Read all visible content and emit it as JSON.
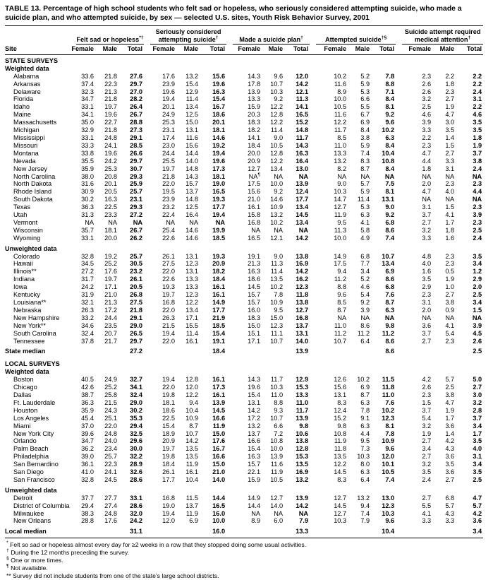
{
  "title": "TABLE 13. Percentage of high school students who felt sad or hopeless, who seriously considered attempting suicide, who made a suicide plan, and who attempted suicide, by sex — selected U.S. sites, Youth Risk Behavior Survey, 2001",
  "header": {
    "site_label": "Site",
    "sub_labels": [
      "Female",
      "Male",
      "Total"
    ],
    "groups": [
      {
        "label": "Felt sad or hopeless",
        "sup": "*†"
      },
      {
        "label": "Seriously considered\nattempting suicide",
        "sup": "†"
      },
      {
        "label": "Made a suicide plan",
        "sup": "†"
      },
      {
        "label": "Attempted suicide",
        "sup": "†§"
      },
      {
        "label": "Suicide attempt required\nmedical attention",
        "sup": "†"
      }
    ]
  },
  "rows": [
    {
      "t": "sec",
      "label": "STATE SURVEYS"
    },
    {
      "t": "sub",
      "label": "Weighted data"
    },
    {
      "t": "r",
      "site": "Alabama",
      "v": [
        "33.6",
        "21.8",
        "27.6",
        "17.6",
        "13.2",
        "15.6",
        "14.3",
        "9.6",
        "12.0",
        "10.2",
        "5.2",
        "7.8",
        "2.3",
        "2.2",
        "2.2"
      ]
    },
    {
      "t": "r",
      "site": "Arkansas",
      "v": [
        "37.4",
        "22.3",
        "29.7",
        "23.9",
        "15.4",
        "19.6",
        "17.8",
        "10.7",
        "14.2",
        "11.6",
        "5.9",
        "8.8",
        "2.6",
        "1.8",
        "2.2"
      ]
    },
    {
      "t": "r",
      "site": "Delaware",
      "v": [
        "32.3",
        "21.3",
        "27.0",
        "19.6",
        "12.9",
        "16.3",
        "13.9",
        "10.3",
        "12.1",
        "8.9",
        "5.3",
        "7.1",
        "2.6",
        "2.3",
        "2.4"
      ]
    },
    {
      "t": "r",
      "site": "Florida",
      "v": [
        "34.7",
        "21.8",
        "28.2",
        "19.4",
        "11.4",
        "15.4",
        "13.3",
        "9.2",
        "11.3",
        "10.0",
        "6.6",
        "8.4",
        "3.2",
        "2.7",
        "3.1"
      ]
    },
    {
      "t": "r",
      "site": "Idaho",
      "v": [
        "33.1",
        "19.7",
        "26.4",
        "20.1",
        "13.4",
        "16.7",
        "15.9",
        "12.2",
        "14.1",
        "10.5",
        "5.5",
        "8.1",
        "2.5",
        "1.9",
        "2.2"
      ]
    },
    {
      "t": "r",
      "site": "Maine",
      "v": [
        "34.1",
        "19.6",
        "26.7",
        "24.9",
        "12.5",
        "18.6",
        "20.3",
        "12.8",
        "16.5",
        "11.6",
        "6.7",
        "9.2",
        "4.6",
        "4.7",
        "4.6"
      ]
    },
    {
      "t": "r",
      "site": "Massachusetts",
      "v": [
        "35.0",
        "22.7",
        "28.8",
        "25.3",
        "15.0",
        "20.1",
        "18.3",
        "12.2",
        "15.2",
        "12.2",
        "6.9",
        "9.6",
        "3.9",
        "3.0",
        "3.5"
      ]
    },
    {
      "t": "r",
      "site": "Michigan",
      "v": [
        "32.9",
        "21.8",
        "27.3",
        "23.1",
        "13.1",
        "18.1",
        "18.2",
        "11.4",
        "14.8",
        "11.7",
        "8.4",
        "10.2",
        "3.3",
        "3.5",
        "3.5"
      ]
    },
    {
      "t": "r",
      "site": "Mississippi",
      "v": [
        "33.1",
        "24.8",
        "29.1",
        "17.4",
        "11.6",
        "14.6",
        "14.1",
        "9.0",
        "11.7",
        "8.5",
        "3.8",
        "6.3",
        "2.2",
        "1.4",
        "1.8"
      ]
    },
    {
      "t": "r",
      "site": "Missouri",
      "v": [
        "33.3",
        "24.1",
        "28.5",
        "23.0",
        "15.6",
        "19.2",
        "18.4",
        "10.5",
        "14.3",
        "11.0",
        "5.9",
        "8.4",
        "2.3",
        "1.5",
        "1.9"
      ]
    },
    {
      "t": "r",
      "site": "Montana",
      "v": [
        "33.8",
        "19.6",
        "26.6",
        "24.4",
        "14.4",
        "19.4",
        "20.0",
        "12.8",
        "16.3",
        "13.3",
        "7.4",
        "10.4",
        "4.7",
        "2.7",
        "3.7"
      ]
    },
    {
      "t": "r",
      "site": "Nevada",
      "v": [
        "35.5",
        "24.2",
        "29.7",
        "25.5",
        "14.0",
        "19.6",
        "20.9",
        "12.2",
        "16.4",
        "13.2",
        "8.3",
        "10.8",
        "4.4",
        "3.3",
        "3.8"
      ]
    },
    {
      "t": "r",
      "site": "New Jersey",
      "v": [
        "35.9",
        "25.3",
        "30.7",
        "19.7",
        "14.8",
        "17.3",
        "12.7",
        "13.4",
        "13.0",
        "8.2",
        "8.7",
        "8.4",
        "1.8",
        "3.1",
        "2.4"
      ]
    },
    {
      "t": "r",
      "site": "North Carolina",
      "v": [
        "38.0",
        "20.8",
        "29.3",
        "21.8",
        "14.3",
        "18.1",
        "NA¶",
        "NA",
        "NA",
        "NA",
        "NA",
        "NA",
        "NA",
        "NA",
        "NA"
      ]
    },
    {
      "t": "r",
      "site": "North Dakota",
      "v": [
        "31.6",
        "20.1",
        "25.9",
        "22.0",
        "15.7",
        "19.0",
        "17.5",
        "10.0",
        "13.9",
        "9.0",
        "5.7",
        "7.5",
        "2.0",
        "2.3",
        "2.3"
      ]
    },
    {
      "t": "r",
      "site": "Rhode Island",
      "v": [
        "30.9",
        "20.5",
        "25.7",
        "19.5",
        "13.7",
        "16.5",
        "15.6",
        "9.2",
        "12.4",
        "10.3",
        "5.9",
        "8.1",
        "4.7",
        "4.0",
        "4.4"
      ]
    },
    {
      "t": "r",
      "site": "South Dakota",
      "v": [
        "30.2",
        "16.3",
        "23.1",
        "23.9",
        "14.8",
        "19.3",
        "21.0",
        "14.6",
        "17.7",
        "14.7",
        "11.4",
        "13.1",
        "NA",
        "NA",
        "NA"
      ]
    },
    {
      "t": "r",
      "site": "Texas",
      "v": [
        "36.3",
        "22.5",
        "29.3",
        "23.2",
        "12.5",
        "17.7",
        "16.1",
        "10.9",
        "13.4",
        "12.7",
        "5.3",
        "9.0",
        "3.1",
        "1.5",
        "2.3"
      ]
    },
    {
      "t": "r",
      "site": "Utah",
      "v": [
        "31.3",
        "23.3",
        "27.2",
        "22.4",
        "16.4",
        "19.4",
        "15.8",
        "13.2",
        "14.5",
        "11.9",
        "6.3",
        "9.2",
        "3.7",
        "4.1",
        "3.9"
      ]
    },
    {
      "t": "r",
      "site": "Vermont",
      "v": [
        "NA",
        "NA",
        "NA",
        "NA",
        "NA",
        "NA",
        "16.8",
        "10.2",
        "13.4",
        "9.5",
        "4.1",
        "6.8",
        "2.7",
        "1.7",
        "2.3"
      ]
    },
    {
      "t": "r",
      "site": "Wisconsin",
      "v": [
        "35.7",
        "18.1",
        "26.7",
        "25.4",
        "14.6",
        "19.9",
        "NA",
        "NA",
        "NA",
        "11.3",
        "5.8",
        "8.6",
        "3.2",
        "1.8",
        "2.5"
      ]
    },
    {
      "t": "r",
      "site": "Wyoming",
      "v": [
        "33.1",
        "20.0",
        "26.2",
        "22.6",
        "14.6",
        "18.5",
        "16.5",
        "12.1",
        "14.2",
        "10.0",
        "4.9",
        "7.4",
        "3.3",
        "1.6",
        "2.4"
      ]
    },
    {
      "t": "sub",
      "label": "Unweighted data",
      "gap": true
    },
    {
      "t": "r",
      "site": "Colorado",
      "v": [
        "32.8",
        "19.2",
        "25.7",
        "26.1",
        "13.1",
        "19.3",
        "19.1",
        "9.0",
        "13.8",
        "14.9",
        "6.8",
        "10.7",
        "4.8",
        "2.3",
        "3.5"
      ]
    },
    {
      "t": "r",
      "site": "Hawaii",
      "v": [
        "34.5",
        "25.2",
        "30.5",
        "27.5",
        "12.3",
        "20.9",
        "21.3",
        "11.3",
        "16.9",
        "17.5",
        "7.7",
        "13.4",
        "4.0",
        "2.3",
        "3.4"
      ]
    },
    {
      "t": "r",
      "site": "Illinois**",
      "v": [
        "27.2",
        "17.6",
        "23.2",
        "22.0",
        "13.1",
        "18.2",
        "16.3",
        "11.4",
        "14.2",
        "9.4",
        "3.4",
        "6.9",
        "1.6",
        "0.5",
        "1.2"
      ]
    },
    {
      "t": "r",
      "site": "Indiana",
      "v": [
        "31.7",
        "19.7",
        "26.1",
        "22.6",
        "13.3",
        "18.4",
        "18.6",
        "13.5",
        "16.2",
        "11.2",
        "5.2",
        "8.6",
        "3.5",
        "1.9",
        "2.9"
      ]
    },
    {
      "t": "r",
      "site": "Iowa",
      "v": [
        "24.2",
        "17.1",
        "20.5",
        "19.3",
        "13.3",
        "16.1",
        "14.5",
        "10.2",
        "12.3",
        "8.8",
        "4.6",
        "6.8",
        "2.9",
        "1.0",
        "2.0"
      ]
    },
    {
      "t": "r",
      "site": "Kentucky",
      "v": [
        "31.9",
        "21.0",
        "26.8",
        "19.7",
        "12.3",
        "16.1",
        "15.7",
        "7.8",
        "11.8",
        "9.6",
        "5.4",
        "7.6",
        "2.3",
        "2.7",
        "2.5"
      ]
    },
    {
      "t": "r",
      "site": "Louisiana**",
      "v": [
        "32.1",
        "21.3",
        "27.5",
        "16.8",
        "12.2",
        "14.9",
        "15.7",
        "10.9",
        "13.8",
        "8.5",
        "9.2",
        "8.7",
        "3.1",
        "3.8",
        "3.4"
      ]
    },
    {
      "t": "r",
      "site": "Nebraska",
      "v": [
        "26.3",
        "17.2",
        "21.8",
        "22.0",
        "13.4",
        "17.7",
        "16.0",
        "9.5",
        "12.7",
        "8.7",
        "3.9",
        "6.3",
        "2.0",
        "0.9",
        "1.5"
      ]
    },
    {
      "t": "r",
      "site": "New Hampshire",
      "v": [
        "33.2",
        "24.4",
        "29.1",
        "26.3",
        "17.1",
        "21.9",
        "18.3",
        "15.0",
        "16.8",
        "NA",
        "NA",
        "NA",
        "NA",
        "NA",
        "NA"
      ]
    },
    {
      "t": "r",
      "site": "New York**",
      "v": [
        "34.6",
        "23.5",
        "29.0",
        "21.5",
        "15.5",
        "18.5",
        "15.0",
        "12.3",
        "13.7",
        "11.0",
        "8.6",
        "9.8",
        "3.6",
        "4.1",
        "3.9"
      ]
    },
    {
      "t": "r",
      "site": "South Carolina",
      "v": [
        "32.4",
        "20.7",
        "26.5",
        "19.4",
        "11.4",
        "15.4",
        "15.1",
        "11.1",
        "13.1",
        "11.2",
        "11.2",
        "11.2",
        "3.7",
        "5.4",
        "4.5"
      ]
    },
    {
      "t": "r",
      "site": "Tennessee",
      "v": [
        "37.8",
        "21.7",
        "29.7",
        "22.0",
        "16.1",
        "19.1",
        "17.1",
        "10.7",
        "14.0",
        "10.7",
        "6.4",
        "8.6",
        "2.7",
        "2.3",
        "2.6"
      ]
    },
    {
      "t": "med",
      "site": "State median",
      "v": [
        "27.2",
        "18.4",
        "13.9",
        "8.6",
        "2.5"
      ]
    },
    {
      "t": "sec",
      "label": "LOCAL SURVEYS",
      "gap": true
    },
    {
      "t": "sub",
      "label": "Weighted data"
    },
    {
      "t": "r",
      "site": "Boston",
      "v": [
        "40.5",
        "24.9",
        "32.7",
        "19.4",
        "12.8",
        "16.1",
        "14.3",
        "11.7",
        "12.9",
        "12.6",
        "10.2",
        "11.5",
        "4.2",
        "5.7",
        "5.0"
      ]
    },
    {
      "t": "r",
      "site": "Chicago",
      "v": [
        "42.6",
        "25.2",
        "34.1",
        "22.0",
        "12.0",
        "17.3",
        "19.6",
        "10.3",
        "15.3",
        "15.6",
        "6.9",
        "11.8",
        "2.6",
        "2.5",
        "2.7"
      ]
    },
    {
      "t": "r",
      "site": "Dallas",
      "v": [
        "38.7",
        "25.8",
        "32.4",
        "19.8",
        "12.2",
        "16.1",
        "15.4",
        "11.0",
        "13.3",
        "13.1",
        "8.7",
        "11.0",
        "2.3",
        "3.8",
        "3.0"
      ]
    },
    {
      "t": "r",
      "site": "Ft. Lauderdale",
      "v": [
        "36.3",
        "21.5",
        "29.0",
        "18.1",
        "9.4",
        "13.9",
        "13.1",
        "8.8",
        "11.0",
        "8.3",
        "6.3",
        "7.6",
        "1.5",
        "4.7",
        "3.2"
      ]
    },
    {
      "t": "r",
      "site": "Houston",
      "v": [
        "35.9",
        "24.3",
        "30.2",
        "18.6",
        "10.4",
        "14.5",
        "14.2",
        "9.3",
        "11.7",
        "12.4",
        "7.8",
        "10.2",
        "3.7",
        "1.9",
        "2.8"
      ]
    },
    {
      "t": "r",
      "site": "Los Angeles",
      "v": [
        "45.4",
        "25.1",
        "35.3",
        "22.5",
        "10.9",
        "16.6",
        "17.2",
        "10.7",
        "13.9",
        "15.2",
        "9.1",
        "12.3",
        "5.4",
        "1.7",
        "3.7"
      ]
    },
    {
      "t": "r",
      "site": "Miami",
      "v": [
        "37.0",
        "22.0",
        "29.4",
        "15.4",
        "8.7",
        "11.9",
        "13.2",
        "6.6",
        "9.8",
        "9.8",
        "6.3",
        "8.1",
        "3.2",
        "3.6",
        "3.4"
      ]
    },
    {
      "t": "r",
      "site": "New York City",
      "v": [
        "39.6",
        "24.8",
        "32.5",
        "18.9",
        "10.7",
        "15.0",
        "13.7",
        "7.2",
        "10.6",
        "10.8",
        "4.4",
        "7.8",
        "1.9",
        "1.4",
        "1.7"
      ]
    },
    {
      "t": "r",
      "site": "Orlando",
      "v": [
        "34.7",
        "24.0",
        "29.6",
        "20.9",
        "14.2",
        "17.6",
        "16.6",
        "10.8",
        "13.8",
        "11.9",
        "9.5",
        "10.9",
        "2.7",
        "4.2",
        "3.5"
      ]
    },
    {
      "t": "r",
      "site": "Palm Beach",
      "v": [
        "36.2",
        "23.4",
        "30.0",
        "19.7",
        "13.5",
        "16.7",
        "15.4",
        "10.0",
        "12.8",
        "11.8",
        "7.3",
        "9.6",
        "3.4",
        "4.3",
        "4.0"
      ]
    },
    {
      "t": "r",
      "site": "Philadelphia",
      "v": [
        "39.0",
        "25.7",
        "32.2",
        "19.8",
        "13.5",
        "16.6",
        "16.3",
        "13.9",
        "15.3",
        "13.5",
        "10.3",
        "12.0",
        "2.7",
        "3.6",
        "3.1"
      ]
    },
    {
      "t": "r",
      "site": "San Bernardino",
      "v": [
        "36.1",
        "22.3",
        "28.9",
        "18.4",
        "11.9",
        "15.0",
        "15.7",
        "11.6",
        "13.5",
        "12.2",
        "8.0",
        "10.1",
        "3.2",
        "3.5",
        "3.4"
      ]
    },
    {
      "t": "r",
      "site": "San Diego",
      "v": [
        "41.0",
        "24.1",
        "32.6",
        "26.1",
        "16.1",
        "21.0",
        "22.1",
        "11.9",
        "16.9",
        "14.5",
        "6.3",
        "10.5",
        "3.5",
        "3.6",
        "3.5"
      ]
    },
    {
      "t": "r",
      "site": "San Francisco",
      "v": [
        "32.8",
        "24.5",
        "28.6",
        "17.7",
        "10.4",
        "14.0",
        "15.9",
        "10.5",
        "13.2",
        "8.3",
        "6.4",
        "7.4",
        "2.4",
        "2.7",
        "2.5"
      ]
    },
    {
      "t": "sub",
      "label": "Unweighted data",
      "gap": true
    },
    {
      "t": "r",
      "site": "Detroit",
      "v": [
        "37.7",
        "27.7",
        "33.1",
        "16.8",
        "11.5",
        "14.4",
        "14.9",
        "12.7",
        "13.9",
        "12.7",
        "13.2",
        "13.0",
        "2.7",
        "6.8",
        "4.7"
      ]
    },
    {
      "t": "r",
      "site": "District of Columbia",
      "v": [
        "29.4",
        "27.4",
        "28.6",
        "19.0",
        "13.7",
        "16.5",
        "14.4",
        "14.0",
        "14.2",
        "14.5",
        "9.4",
        "12.3",
        "5.5",
        "5.7",
        "5.7"
      ]
    },
    {
      "t": "r",
      "site": "Milwaukee",
      "v": [
        "38.3",
        "24.8",
        "32.0",
        "19.4",
        "11.9",
        "16.0",
        "NA",
        "NA",
        "NA",
        "12.7",
        "7.4",
        "10.3",
        "4.1",
        "4.3",
        "4.2"
      ]
    },
    {
      "t": "r",
      "site": "New Orleans",
      "v": [
        "28.8",
        "17.6",
        "24.2",
        "12.0",
        "6.9",
        "10.0",
        "8.9",
        "6.0",
        "7.9",
        "10.3",
        "7.9",
        "9.6",
        "3.3",
        "3.3",
        "3.6"
      ]
    },
    {
      "t": "med",
      "site": "Local median",
      "final": true,
      "v": [
        "31.1",
        "16.0",
        "13.3",
        "10.4",
        "3.4"
      ]
    }
  ],
  "footnotes": [
    {
      "marker": "*",
      "text": "Felt so sad or hopeless almost every day for ≥2 weeks in a row that they stopped doing some usual activities."
    },
    {
      "marker": "†",
      "text": "During the 12 months preceding the survey."
    },
    {
      "marker": "§",
      "text": "One or more times."
    },
    {
      "marker": "¶",
      "text": "Not available."
    },
    {
      "marker": "**",
      "text": "Survey did not include students from one of the state's large school districts."
    }
  ]
}
